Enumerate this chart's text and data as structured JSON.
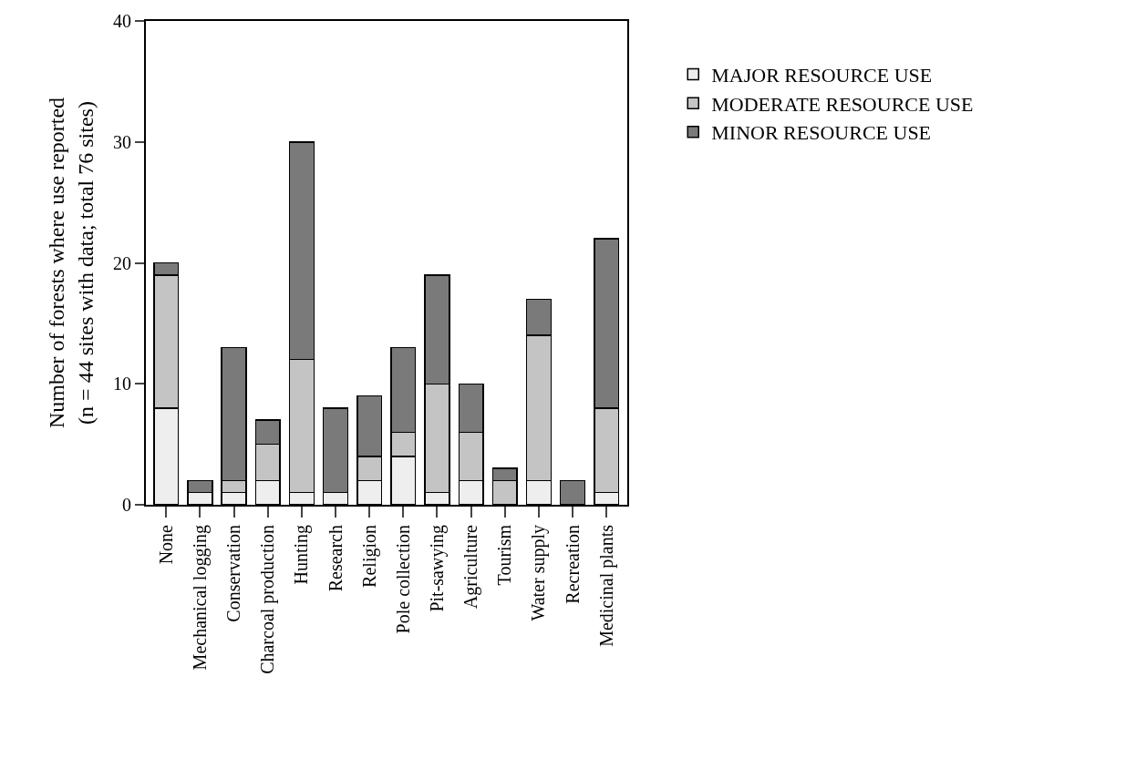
{
  "chart_data": {
    "type": "bar",
    "stacked": true,
    "ylabel": "Number of forests where use reported\n(n = 44 sites with data; total 76 sites)",
    "categories": [
      "None",
      "Mechanical logging",
      "Conservation",
      "Charcoal production",
      "Hunting",
      "Research",
      "Religion",
      "Pole collection",
      "Pit-sawying",
      "Agriculture",
      "Tourism",
      "Water supply",
      "Recreation",
      "Medicinal plants"
    ],
    "series": [
      {
        "name": "MAJOR RESOURCE USE",
        "color": "#eeeeee",
        "values": [
          8,
          1,
          1,
          2,
          1,
          1,
          2,
          4,
          1,
          2,
          0,
          2,
          0,
          1
        ]
      },
      {
        "name": "MODERATE RESOURCE USE",
        "color": "#c4c4c4",
        "values": [
          11,
          0,
          1,
          3,
          11,
          0,
          2,
          2,
          9,
          4,
          2,
          12,
          0,
          7
        ]
      },
      {
        "name": "MINOR RESOURCE USE",
        "color": "#7a7a7a",
        "values": [
          1,
          1,
          11,
          2,
          18,
          7,
          5,
          7,
          9,
          4,
          1,
          3,
          2,
          14
        ]
      }
    ],
    "ylim": [
      0,
      40
    ],
    "yticks": [
      0,
      10,
      20,
      30,
      40
    ],
    "legend": "right"
  }
}
